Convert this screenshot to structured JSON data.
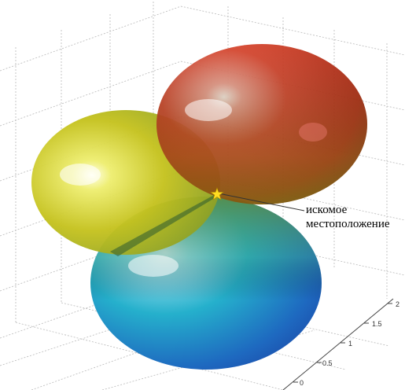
{
  "annotation": {
    "line1": "искомое",
    "line2": "местоположение"
  },
  "axis_ticks": [
    "2",
    "1.5",
    "1",
    "0.5",
    "0"
  ],
  "colors": {
    "top_lobe": "#c61e10",
    "left_lobe": "#c9c21a",
    "bottom_lobe": "#1aa9c8",
    "marker": "#ffdd22",
    "grid": "#b9b9b9"
  },
  "marker_icon": "star-icon"
}
